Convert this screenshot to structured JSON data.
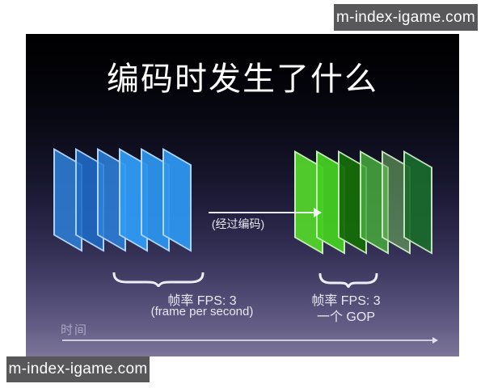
{
  "watermarks": {
    "top": "m-index-igame.com",
    "bottom": "m-index-igame.com"
  },
  "slide": {
    "title": "编码时发生了什么",
    "arrow_label": "(经过编码)",
    "left_group": {
      "caption_line1": "帧率 FPS: 3",
      "caption_line2": "(frame per second)",
      "frame_border": "rgba(190,222,250,0.9)",
      "frames": [
        {
          "fill": "rgba(46,126,214,0.88)"
        },
        {
          "fill": "rgba(30,108,200,0.88)"
        },
        {
          "fill": "rgba(44,128,218,0.88)"
        },
        {
          "fill": "rgba(47,155,244,0.95)"
        },
        {
          "fill": "rgba(43,147,236,0.95)"
        },
        {
          "fill": "rgba(45,150,238,0.95)"
        }
      ]
    },
    "right_group": {
      "caption_line1": "帧率 FPS: 3",
      "caption_line2": "一个 GOP",
      "frame_border": "rgba(214,240,205,0.9)",
      "frames": [
        {
          "fill": "rgba(82,211,43,0.95)"
        },
        {
          "fill": "rgba(69,205,34,0.95)"
        },
        {
          "fill": "rgba(21,107,8,0.95)"
        },
        {
          "fill": "rgba(72,171,61,0.85)"
        },
        {
          "fill": "rgba(110,175,95,0.6)"
        },
        {
          "fill": "rgba(26,107,45,0.92)"
        }
      ]
    },
    "timeline_label": "时间",
    "colors": {
      "background_top": "#000000",
      "background_bottom": "#7d7699",
      "accent_blue": "#2e8fe8",
      "accent_green": "#4ccd27",
      "watermark_background": "#58585a",
      "watermark_text": "#ffffff",
      "text": "#ffffff"
    }
  }
}
